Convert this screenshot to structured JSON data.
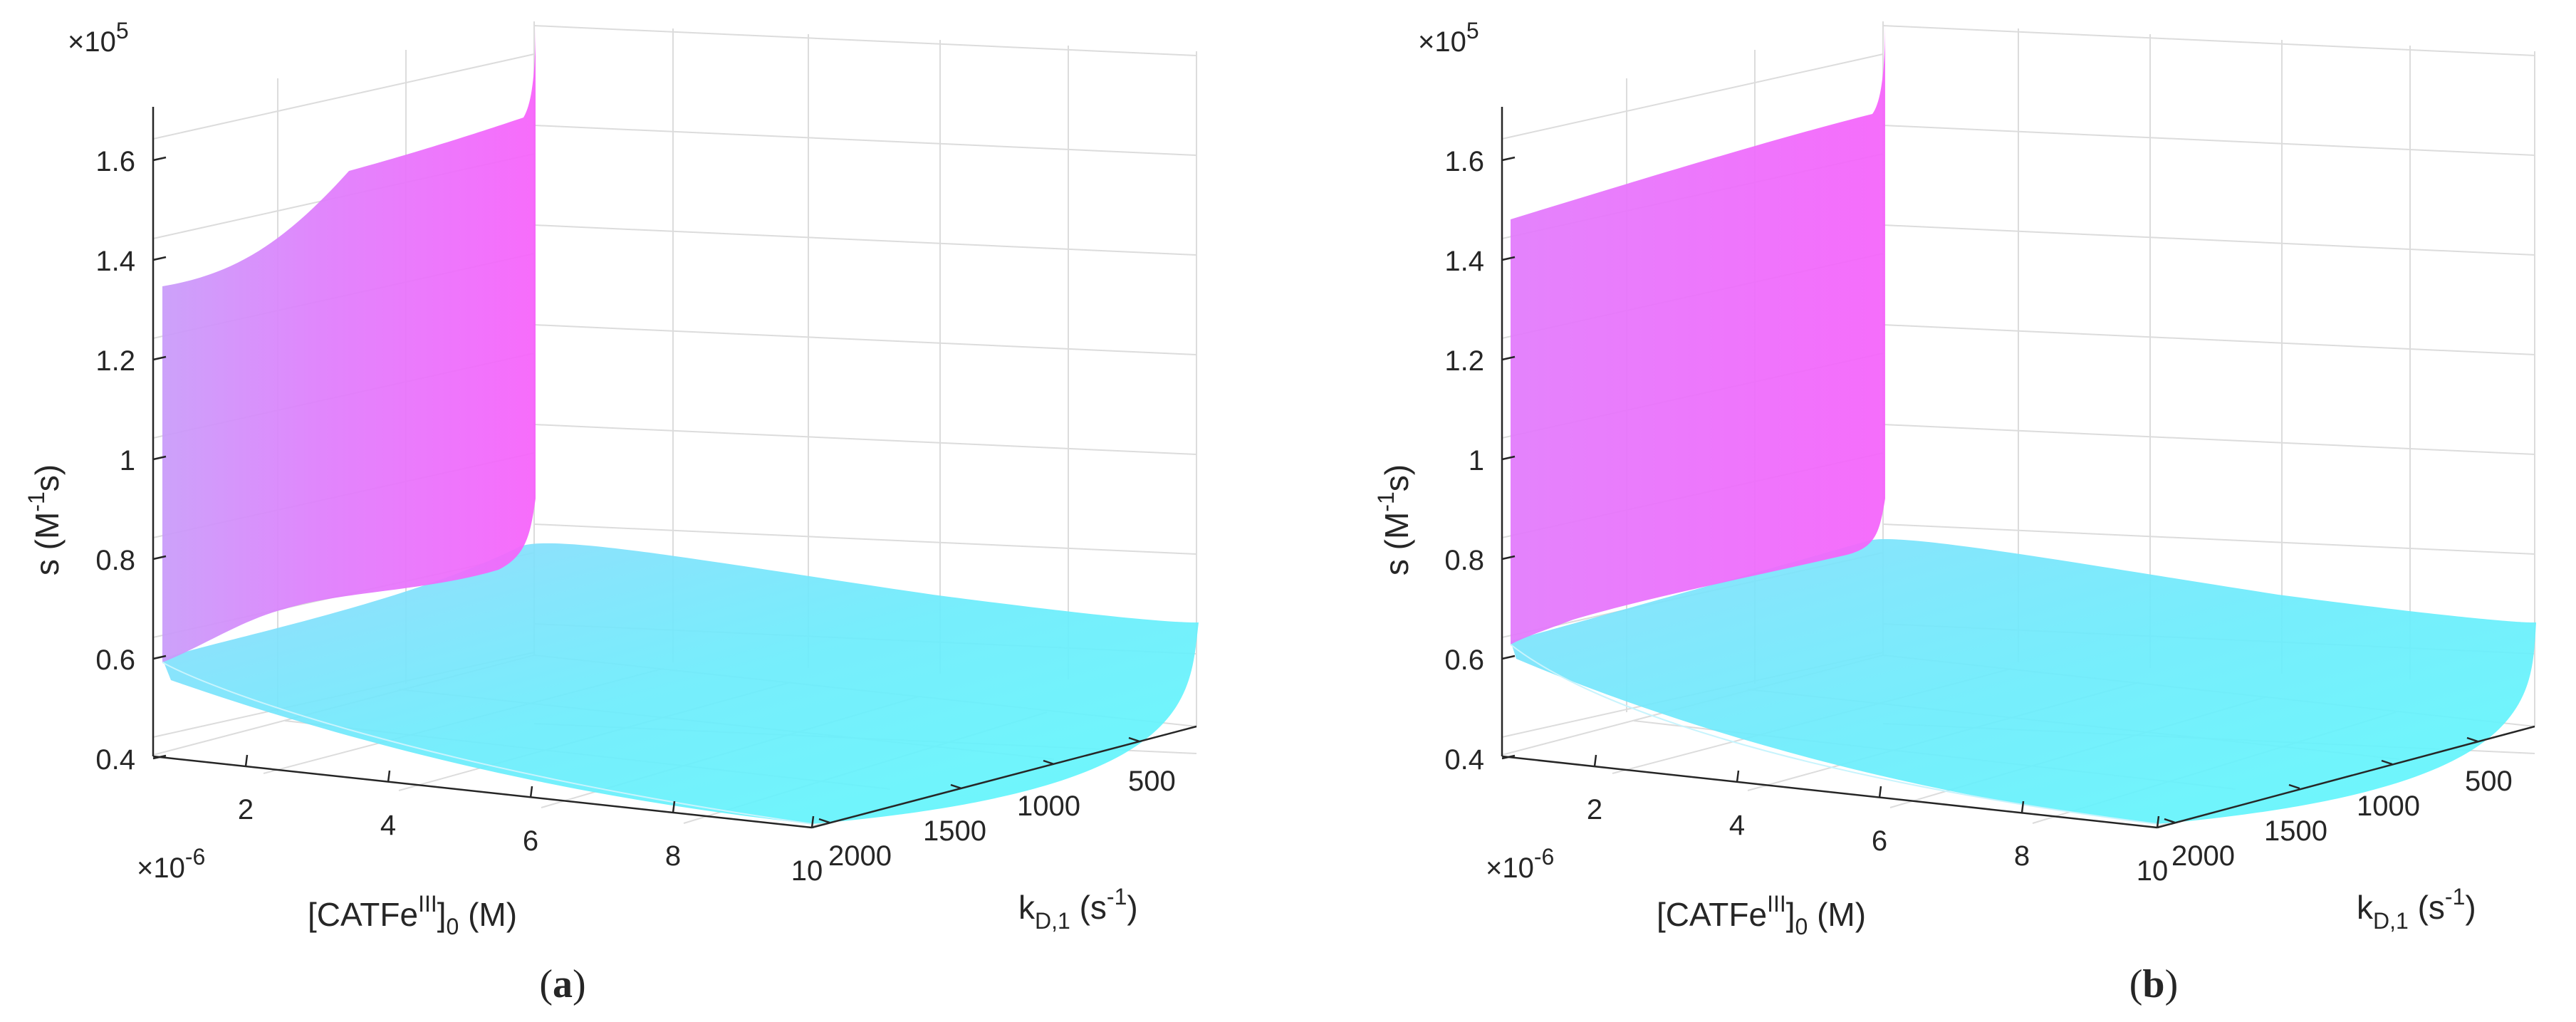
{
  "chart_data": [
    {
      "type": "surface",
      "panel_label": "a",
      "zlabel": "s (M⁻¹s)",
      "xlabel": "[CATFeᴵᴵᴵ]₀ (M)",
      "ylabel": "k_D,1 (s⁻¹)",
      "x_exponent": "×10⁻⁶",
      "z_exponent": "×10⁵",
      "x_ticks": [
        "2",
        "4",
        "6",
        "8",
        "10"
      ],
      "y_ticks": [
        "500",
        "1000",
        "1500",
        "2000"
      ],
      "z_ticks": [
        "0.4",
        "0.6",
        "0.8",
        "1",
        "1.2",
        "1.4",
        "1.6"
      ],
      "xlim": [
        0.6,
        10
      ],
      "ylim": [
        100,
        2000
      ],
      "zlim": [
        0.38,
        1.66
      ],
      "grid": true,
      "colormap": "cool",
      "surface_profile": {
        "x": [
          0.6,
          10
        ],
        "z_at_kD_100": [
          1.65,
          0.66
        ],
        "z_at_kD_2000": [
          1.31,
          0.4
        ]
      }
    },
    {
      "type": "surface",
      "panel_label": "b",
      "zlabel": "s (M⁻¹s)",
      "xlabel": "[CATFeᴵᴵᴵ]₀ (M)",
      "ylabel": "k_D,1 (s⁻¹)",
      "x_exponent": "×10⁻⁶",
      "z_exponent": "×10⁵",
      "x_ticks": [
        "2",
        "4",
        "6",
        "8",
        "10"
      ],
      "y_ticks": [
        "500",
        "1000",
        "1500",
        "2000"
      ],
      "z_ticks": [
        "0.4",
        "0.6",
        "0.8",
        "1",
        "1.2",
        "1.4",
        "1.6"
      ],
      "xlim": [
        0.6,
        10
      ],
      "ylim": [
        100,
        2000
      ],
      "zlim": [
        0.38,
        1.66
      ],
      "grid": true,
      "colormap": "cool",
      "surface_profile": {
        "x": [
          0.6,
          10
        ],
        "z_at_kD_100": [
          1.66,
          0.66
        ],
        "z_at_kD_2000": [
          1.44,
          0.4
        ]
      }
    }
  ],
  "labels": {
    "a": {
      "caption_open": "(",
      "caption_letter": "a",
      "caption_close": ")",
      "x_axis_main": "[CATFe",
      "x_axis_sup": "III",
      "x_axis_sub": "0",
      "x_axis_unit": " (M)",
      "y_axis_main": "k",
      "y_axis_sub": "D,1",
      "y_axis_unit_open": " (s",
      "y_axis_sup": "-1",
      "y_axis_unit_close": ")",
      "z_axis_main": "s (M",
      "z_axis_sup": "-1",
      "z_axis_unit": "s)",
      "x_exp_main": "×10",
      "x_exp_sup": "-6",
      "z_exp_main": "×10",
      "z_exp_sup": "5"
    },
    "b": {
      "caption_open": "(",
      "caption_letter": "b",
      "caption_close": ")",
      "x_axis_main": "[CATFe",
      "x_axis_sup": "III",
      "x_axis_sub": "0",
      "x_axis_unit": " (M)",
      "y_axis_main": "k",
      "y_axis_sub": "D,1",
      "y_axis_unit_open": " (s",
      "y_axis_sup": "-1",
      "y_axis_unit_close": ")",
      "z_axis_main": "s (M",
      "z_axis_sup": "-1",
      "z_axis_unit": "s)",
      "x_exp_main": "×10",
      "x_exp_sup": "-6",
      "z_exp_main": "×10",
      "z_exp_sup": "5"
    }
  },
  "colors": {
    "magenta_light": "#f763fb",
    "magenta_mid": "#e879fc",
    "violet": "#c79bfa",
    "cyan": "#5ff6fc",
    "sky": "#80e3fb",
    "grid": "#dcdcdc",
    "axis": "#262626"
  }
}
